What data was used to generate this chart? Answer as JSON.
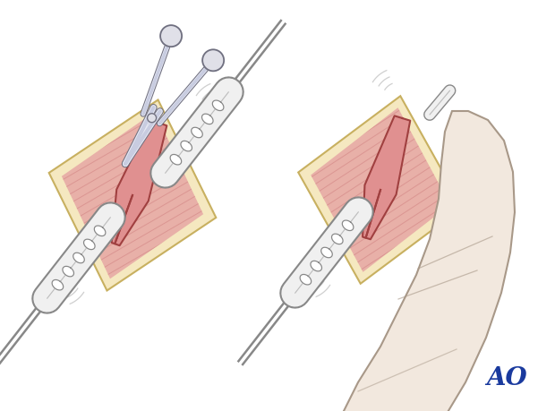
{
  "bg_color": "#ffffff",
  "ao_text": "AO",
  "ao_color": "#1a3a9e",
  "ao_fontsize": 20,
  "skin_color": "#f5e8c0",
  "skin_edge": "#c8b060",
  "muscle_base": "#e8b0a8",
  "muscle_light": "#f0c8c0",
  "muscle_line": "#d08080",
  "muscle_split_color": "#a04040",
  "retractor_fill": "#f0f0f0",
  "retractor_edge": "#888888",
  "scissors_blade": "#c8cce0",
  "scissors_light": "#e8eaf5",
  "scissors_edge": "#707080",
  "hand_fill": "#f2e8de",
  "hand_edge": "#a89888",
  "wobble_color": "#bbbbbb",
  "instrument_fill": "#f0f0f0",
  "instrument_edge": "#888888"
}
